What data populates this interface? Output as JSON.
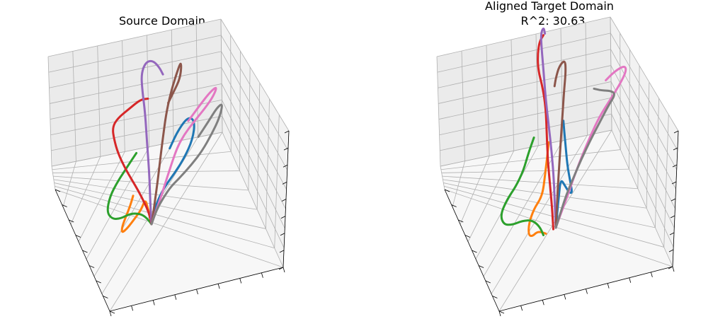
{
  "chart_data": [
    {
      "type": "line3d",
      "title": "Source Domain",
      "xlabel": "",
      "ylabel": "",
      "zlabel": "",
      "tick_labels_visible": false,
      "grid": true,
      "series_colors": [
        "#1f77b4",
        "#ff7f0e",
        "#2ca02c",
        "#d62728",
        "#9467bd",
        "#8c564b",
        "#e377c2",
        "#7f7f7f"
      ],
      "series": [
        {
          "color": "#1f77b4",
          "values": [
            [
              0.0,
              0.0,
              0.0
            ],
            [
              0.02,
              0.01,
              0.06
            ],
            [
              0.05,
              0.02,
              0.11
            ],
            [
              0.1,
              0.04,
              0.15
            ],
            [
              0.17,
              0.07,
              0.18
            ],
            [
              0.24,
              0.1,
              0.22
            ],
            [
              0.3,
              0.14,
              0.28
            ],
            [
              0.31,
              0.18,
              0.36
            ],
            [
              0.25,
              0.2,
              0.4
            ],
            [
              0.17,
              0.19,
              0.36
            ],
            [
              0.11,
              0.16,
              0.3
            ]
          ]
        },
        {
          "color": "#ff7f0e",
          "values": [
            [
              0.0,
              0.0,
              0.0
            ],
            [
              -0.01,
              0.0,
              0.05
            ],
            [
              -0.03,
              0.0,
              0.1
            ],
            [
              -0.05,
              0.0,
              0.16
            ],
            [
              -0.08,
              -0.01,
              0.12
            ],
            [
              -0.12,
              -0.02,
              0.1
            ],
            [
              -0.16,
              -0.02,
              0.08
            ],
            [
              -0.2,
              -0.01,
              0.06
            ],
            [
              -0.24,
              0.0,
              0.05
            ],
            [
              -0.24,
              0.01,
              0.08
            ],
            [
              -0.21,
              0.03,
              0.12
            ],
            [
              -0.18,
              0.04,
              0.16
            ],
            [
              -0.16,
              0.05,
              0.2
            ]
          ]
        },
        {
          "color": "#2ca02c",
          "values": [
            [
              0.0,
              0.0,
              0.0
            ],
            [
              -0.03,
              0.0,
              0.04
            ],
            [
              -0.07,
              0.0,
              0.08
            ],
            [
              -0.12,
              0.0,
              0.11
            ],
            [
              -0.18,
              0.0,
              0.13
            ],
            [
              -0.25,
              0.01,
              0.13
            ],
            [
              -0.32,
              0.02,
              0.15
            ],
            [
              -0.37,
              0.04,
              0.2
            ],
            [
              -0.35,
              0.06,
              0.27
            ],
            [
              -0.29,
              0.08,
              0.32
            ],
            [
              -0.22,
              0.1,
              0.36
            ],
            [
              -0.15,
              0.12,
              0.4
            ]
          ]
        },
        {
          "color": "#d62728",
          "values": [
            [
              0.0,
              0.0,
              0.0
            ],
            [
              -0.02,
              0.0,
              0.07
            ],
            [
              -0.06,
              0.01,
              0.14
            ],
            [
              -0.11,
              0.02,
              0.22
            ],
            [
              -0.17,
              0.04,
              0.3
            ],
            [
              -0.23,
              0.06,
              0.38
            ],
            [
              -0.29,
              0.09,
              0.47
            ],
            [
              -0.33,
              0.12,
              0.55
            ],
            [
              -0.35,
              0.15,
              0.61
            ],
            [
              -0.31,
              0.16,
              0.64
            ],
            [
              -0.22,
              0.17,
              0.65
            ],
            [
              -0.13,
              0.18,
              0.66
            ],
            [
              -0.07,
              0.18,
              0.64
            ]
          ]
        },
        {
          "color": "#9467bd",
          "values": [
            [
              0.0,
              0.0,
              0.0
            ],
            [
              -0.01,
              0.0,
              0.12
            ],
            [
              -0.02,
              0.01,
              0.28
            ],
            [
              -0.04,
              0.02,
              0.45
            ],
            [
              -0.06,
              0.04,
              0.62
            ],
            [
              -0.09,
              0.06,
              0.76
            ],
            [
              -0.1,
              0.08,
              0.84
            ],
            [
              -0.07,
              0.1,
              0.88
            ],
            [
              -0.02,
              0.12,
              0.86
            ],
            [
              0.03,
              0.13,
              0.8
            ],
            [
              0.06,
              0.14,
              0.74
            ]
          ]
        },
        {
          "color": "#8c564b",
          "values": [
            [
              0.0,
              0.0,
              0.0
            ],
            [
              0.02,
              0.0,
              0.08
            ],
            [
              0.04,
              0.01,
              0.18
            ],
            [
              0.06,
              0.03,
              0.3
            ],
            [
              0.08,
              0.05,
              0.42
            ],
            [
              0.1,
              0.07,
              0.53
            ],
            [
              0.13,
              0.09,
              0.62
            ],
            [
              0.17,
              0.12,
              0.7
            ],
            [
              0.21,
              0.14,
              0.76
            ],
            [
              0.2,
              0.15,
              0.66
            ],
            [
              0.14,
              0.15,
              0.6
            ],
            [
              0.1,
              0.15,
              0.56
            ]
          ]
        },
        {
          "color": "#e377c2",
          "values": [
            [
              0.0,
              0.0,
              0.0
            ],
            [
              0.03,
              0.01,
              0.05
            ],
            [
              0.07,
              0.02,
              0.11
            ],
            [
              0.11,
              0.04,
              0.18
            ],
            [
              0.15,
              0.06,
              0.25
            ],
            [
              0.19,
              0.08,
              0.31
            ],
            [
              0.24,
              0.1,
              0.35
            ],
            [
              0.31,
              0.12,
              0.38
            ],
            [
              0.4,
              0.15,
              0.41
            ],
            [
              0.46,
              0.17,
              0.44
            ],
            [
              0.49,
              0.18,
              0.48
            ],
            [
              0.43,
              0.18,
              0.47
            ],
            [
              0.34,
              0.17,
              0.43
            ],
            [
              0.26,
              0.16,
              0.39
            ]
          ]
        },
        {
          "color": "#7f7f7f",
          "values": [
            [
              0.0,
              0.0,
              0.0
            ],
            [
              0.04,
              0.01,
              0.06
            ],
            [
              0.09,
              0.02,
              0.1
            ],
            [
              0.15,
              0.04,
              0.13
            ],
            [
              0.22,
              0.07,
              0.14
            ],
            [
              0.3,
              0.1,
              0.16
            ],
            [
              0.38,
              0.13,
              0.19
            ],
            [
              0.45,
              0.16,
              0.24
            ],
            [
              0.51,
              0.18,
              0.3
            ],
            [
              0.53,
              0.2,
              0.36
            ],
            [
              0.48,
              0.21,
              0.35
            ],
            [
              0.41,
              0.21,
              0.3
            ],
            [
              0.33,
              0.21,
              0.25
            ]
          ]
        }
      ]
    },
    {
      "type": "line3d",
      "title": "Aligned Target Domain",
      "subtitle": "R^2: 30.63",
      "xlabel": "",
      "ylabel": "",
      "zlabel": "",
      "tick_labels_visible": false,
      "grid": true,
      "series_colors": [
        "#1f77b4",
        "#ff7f0e",
        "#2ca02c",
        "#d62728",
        "#9467bd",
        "#8c564b",
        "#e377c2",
        "#7f7f7f"
      ],
      "series": [
        {
          "color": "#1f77b4",
          "values": [
            [
              0.0,
              0.0,
              0.0
            ],
            [
              0.01,
              0.01,
              0.08
            ],
            [
              0.02,
              0.02,
              0.16
            ],
            [
              0.03,
              0.04,
              0.24
            ],
            [
              0.06,
              0.06,
              0.18
            ],
            [
              0.09,
              0.08,
              0.12
            ],
            [
              0.11,
              0.1,
              0.1
            ],
            [
              0.09,
              0.12,
              0.16
            ],
            [
              0.06,
              0.14,
              0.26
            ],
            [
              0.04,
              0.16,
              0.38
            ],
            [
              0.02,
              0.18,
              0.5
            ]
          ]
        },
        {
          "color": "#ff7f0e",
          "values": [
            [
              -0.08,
              0.0,
              0.0
            ],
            [
              -0.11,
              0.0,
              0.02
            ],
            [
              -0.15,
              0.0,
              0.04
            ],
            [
              -0.19,
              0.0,
              0.03
            ],
            [
              -0.22,
              0.0,
              0.05
            ],
            [
              -0.22,
              0.01,
              0.11
            ],
            [
              -0.18,
              0.02,
              0.17
            ],
            [
              -0.13,
              0.03,
              0.2
            ],
            [
              -0.11,
              0.04,
              0.24
            ],
            [
              -0.1,
              0.06,
              0.31
            ],
            [
              -0.09,
              0.08,
              0.38
            ],
            [
              -0.08,
              0.1,
              0.46
            ]
          ]
        },
        {
          "color": "#2ca02c",
          "values": [
            [
              -0.1,
              0.0,
              0.0
            ],
            [
              -0.13,
              0.0,
              0.06
            ],
            [
              -0.19,
              0.0,
              0.12
            ],
            [
              -0.27,
              0.0,
              0.15
            ],
            [
              -0.35,
              0.0,
              0.16
            ],
            [
              -0.42,
              0.0,
              0.19
            ],
            [
              -0.45,
              0.01,
              0.25
            ],
            [
              -0.4,
              0.02,
              0.31
            ],
            [
              -0.33,
              0.03,
              0.35
            ],
            [
              -0.27,
              0.04,
              0.41
            ],
            [
              -0.23,
              0.05,
              0.49
            ],
            [
              -0.19,
              0.06,
              0.55
            ]
          ]
        },
        {
          "color": "#d62728",
          "values": [
            [
              -0.02,
              0.0,
              0.0
            ],
            [
              -0.03,
              0.0,
              0.12
            ],
            [
              -0.05,
              0.01,
              0.26
            ],
            [
              -0.07,
              0.02,
              0.4
            ],
            [
              -0.08,
              0.03,
              0.54
            ],
            [
              -0.09,
              0.04,
              0.68
            ],
            [
              -0.12,
              0.06,
              0.8
            ],
            [
              -0.16,
              0.08,
              0.9
            ],
            [
              -0.17,
              0.1,
              0.98
            ],
            [
              -0.16,
              0.12,
              1.04
            ],
            [
              -0.13,
              0.13,
              1.06
            ]
          ]
        },
        {
          "color": "#9467bd",
          "values": [
            [
              0.0,
              0.0,
              0.0
            ],
            [
              -0.01,
              0.01,
              0.12
            ],
            [
              -0.02,
              0.02,
              0.26
            ],
            [
              -0.04,
              0.03,
              0.42
            ],
            [
              -0.07,
              0.05,
              0.58
            ],
            [
              -0.1,
              0.07,
              0.74
            ],
            [
              -0.12,
              0.09,
              0.88
            ],
            [
              -0.14,
              0.11,
              1.0
            ],
            [
              -0.15,
              0.13,
              1.08
            ],
            [
              -0.13,
              0.14,
              1.1
            ],
            [
              -0.12,
              0.14,
              1.06
            ]
          ]
        },
        {
          "color": "#8c564b",
          "values": [
            [
              0.0,
              0.0,
              0.0
            ],
            [
              0.01,
              0.0,
              0.14
            ],
            [
              0.02,
              0.01,
              0.28
            ],
            [
              0.03,
              0.03,
              0.42
            ],
            [
              0.04,
              0.05,
              0.56
            ],
            [
              0.05,
              0.07,
              0.7
            ],
            [
              0.06,
              0.09,
              0.8
            ],
            [
              0.05,
              0.11,
              0.86
            ],
            [
              0.0,
              0.12,
              0.84
            ],
            [
              -0.03,
              0.13,
              0.78
            ],
            [
              -0.04,
              0.13,
              0.74
            ]
          ]
        },
        {
          "color": "#e377c2",
          "values": [
            [
              0.0,
              0.0,
              0.0
            ],
            [
              0.04,
              0.01,
              0.06
            ],
            [
              0.09,
              0.03,
              0.13
            ],
            [
              0.14,
              0.05,
              0.21
            ],
            [
              0.2,
              0.08,
              0.29
            ],
            [
              0.26,
              0.1,
              0.36
            ],
            [
              0.32,
              0.13,
              0.42
            ],
            [
              0.4,
              0.15,
              0.47
            ],
            [
              0.48,
              0.17,
              0.52
            ],
            [
              0.53,
              0.18,
              0.57
            ],
            [
              0.51,
              0.19,
              0.6
            ],
            [
              0.43,
              0.19,
              0.6
            ],
            [
              0.36,
              0.19,
              0.58
            ]
          ]
        },
        {
          "color": "#7f7f7f",
          "values": [
            [
              0.0,
              0.0,
              0.0
            ],
            [
              0.04,
              0.01,
              0.07
            ],
            [
              0.08,
              0.02,
              0.14
            ],
            [
              0.13,
              0.04,
              0.2
            ],
            [
              0.19,
              0.06,
              0.27
            ],
            [
              0.26,
              0.08,
              0.34
            ],
            [
              0.33,
              0.1,
              0.4
            ],
            [
              0.4,
              0.12,
              0.46
            ],
            [
              0.45,
              0.14,
              0.49
            ],
            [
              0.41,
              0.15,
              0.52
            ],
            [
              0.33,
              0.16,
              0.55
            ],
            [
              0.27,
              0.17,
              0.58
            ]
          ]
        }
      ]
    }
  ]
}
